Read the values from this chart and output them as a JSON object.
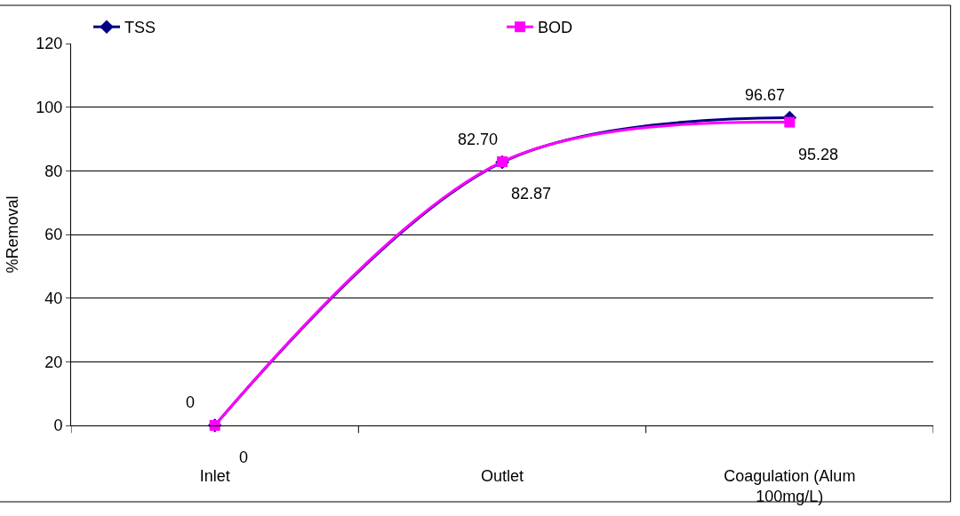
{
  "chart_data": {
    "type": "line",
    "ylabel": "%Removal",
    "categories": [
      "Inlet",
      "Outlet",
      "Coagulation (Alum 100mg/L)"
    ],
    "series": [
      {
        "name": "TSS",
        "color": "#000080",
        "marker": "diamond",
        "values": [
          0,
          82.7,
          96.67
        ],
        "value_labels": [
          "0",
          "82.70",
          "96.67"
        ]
      },
      {
        "name": "BOD",
        "color": "#ff00ff",
        "marker": "square",
        "values": [
          0,
          82.87,
          95.28
        ],
        "value_labels": [
          "0",
          "82.87",
          "95.28"
        ]
      }
    ],
    "ylim": [
      0,
      120
    ],
    "yticks": [
      0,
      20,
      40,
      60,
      80,
      100,
      120
    ],
    "grid": "y",
    "legend": "top",
    "line_style": "solid"
  }
}
